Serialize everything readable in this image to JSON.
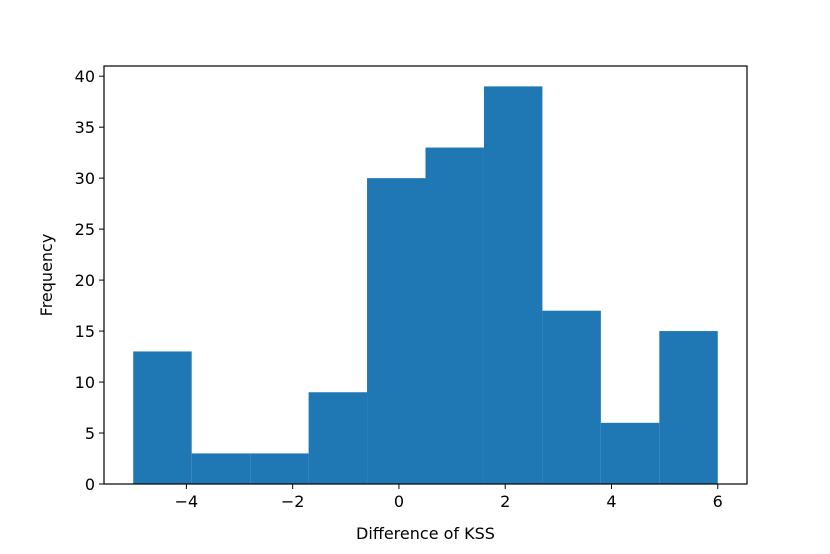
{
  "chart_data": {
    "type": "bar",
    "xlabel": "Difference of KSS",
    "ylabel": "Frequency",
    "xlim": [
      -5.55,
      6.55
    ],
    "ylim": [
      0,
      41
    ],
    "bins": [
      {
        "x0": -5.0,
        "x1": -3.9,
        "value": 13
      },
      {
        "x0": -3.9,
        "x1": -2.8,
        "value": 3
      },
      {
        "x0": -2.8,
        "x1": -1.7,
        "value": 3
      },
      {
        "x0": -1.7,
        "x1": -0.6,
        "value": 9
      },
      {
        "x0": -0.6,
        "x1": 0.5,
        "value": 30
      },
      {
        "x0": 0.5,
        "x1": 1.6,
        "value": 33
      },
      {
        "x0": 1.6,
        "x1": 2.7,
        "value": 39
      },
      {
        "x0": 2.7,
        "x1": 3.8,
        "value": 17
      },
      {
        "x0": 3.8,
        "x1": 4.9,
        "value": 6
      },
      {
        "x0": 4.9,
        "x1": 6.0,
        "value": 15
      }
    ],
    "xticks": [
      {
        "value": -4,
        "label": "−4"
      },
      {
        "value": -2,
        "label": "−2"
      },
      {
        "value": 0,
        "label": "0"
      },
      {
        "value": 2,
        "label": "2"
      },
      {
        "value": 4,
        "label": "4"
      },
      {
        "value": 6,
        "label": "6"
      }
    ],
    "yticks": [
      {
        "value": 0,
        "label": "0"
      },
      {
        "value": 5,
        "label": "5"
      },
      {
        "value": 10,
        "label": "10"
      },
      {
        "value": 15,
        "label": "15"
      },
      {
        "value": 20,
        "label": "20"
      },
      {
        "value": 25,
        "label": "25"
      },
      {
        "value": 30,
        "label": "30"
      },
      {
        "value": 35,
        "label": "35"
      },
      {
        "value": 40,
        "label": "40"
      }
    ],
    "bar_color": "#1f77b4",
    "grid": false,
    "legend": "none"
  }
}
